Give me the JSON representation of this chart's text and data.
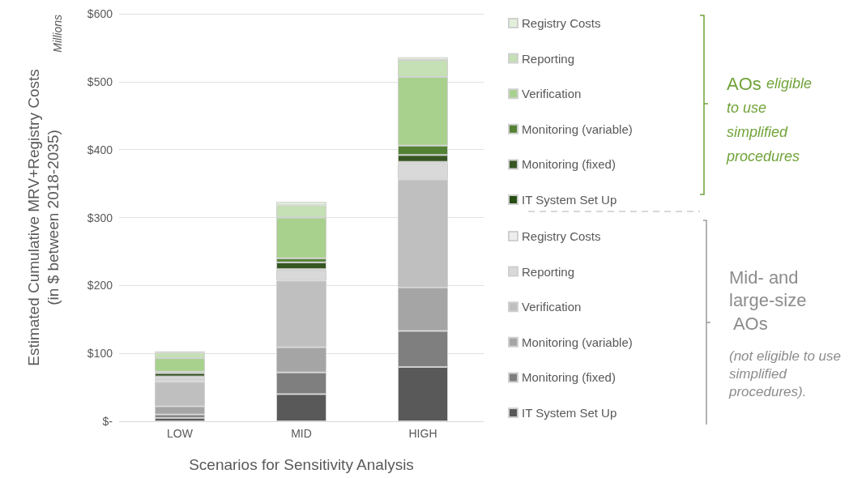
{
  "chart_data": {
    "type": "bar",
    "stacked": true,
    "ylabel": "Estimated Cumulative MRV+Registry Costs\n(in $ between 2018-2035)",
    "xlabel": "Scenarios for Sensitivity Analysis",
    "categories": [
      "LOW",
      "MID",
      "HIGH"
    ],
    "series": [
      {
        "name": "IT System Set Up",
        "color": "#595959",
        "values": [
          5,
          40,
          80
        ]
      },
      {
        "name": "Monitoring (fixed)",
        "color": "#7f7f7f",
        "values": [
          5,
          32,
          53
        ]
      },
      {
        "name": "Monitoring (variable)",
        "color": "#a5a5a5",
        "values": [
          12,
          37,
          64
        ]
      },
      {
        "name": "Verification",
        "color": "#bfbfbf",
        "values": [
          36,
          98,
          159
        ]
      },
      {
        "name": "Reporting",
        "color": "#d9d9d9",
        "values": [
          4,
          15,
          24
        ]
      },
      {
        "name": "Registry Costs",
        "color": "#ededed",
        "values": [
          3,
          2,
          2
        ]
      },
      {
        "name": "IT System Set Up",
        "color": "#274e13",
        "values": [
          1,
          null,
          null
        ]
      },
      {
        "name": "Monitoring (fixed)",
        "color": "#375623",
        "values": [
          5,
          10,
          10
        ]
      },
      {
        "name": "Monitoring (variable)",
        "color": "#548235",
        "values": [
          2,
          6,
          14
        ]
      },
      {
        "name": "Verification",
        "color": "#a9d18e",
        "values": [
          20,
          60,
          101
        ]
      },
      {
        "name": "Reporting",
        "color": "#c5e0b4",
        "values": [
          8,
          18,
          25
        ]
      },
      {
        "name": "Registry Costs",
        "color": "#e2f0d9",
        "values": [
          2,
          5,
          4
        ]
      }
    ],
    "ylim": [
      0,
      600
    ],
    "yticks": [
      {
        "value": 0,
        "label": "$-"
      },
      {
        "value": 100,
        "label": "$100"
      },
      {
        "value": 200,
        "label": "$200"
      },
      {
        "value": 300,
        "label": "$300"
      },
      {
        "value": 400,
        "label": "$400"
      },
      {
        "value": 500,
        "label": "$500"
      },
      {
        "value": 600,
        "label": "$600"
      }
    ],
    "grid": "y",
    "legend": "right",
    "annotations": [
      "Millions",
      "AOs",
      "eligible to use simplified procedures",
      "Mid- and large-size AOs",
      "(not eligible to use simplified procedures)."
    ]
  }
}
